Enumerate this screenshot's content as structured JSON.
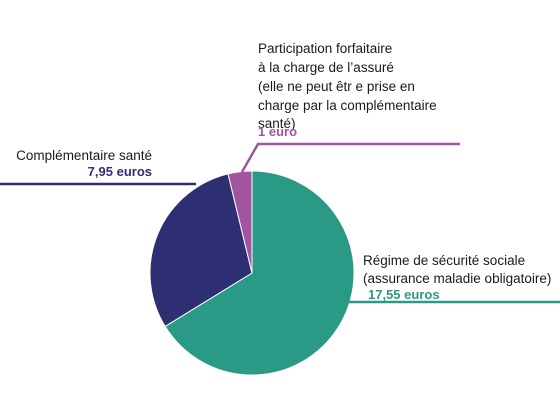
{
  "chart_data": {
    "type": "pie",
    "slices": [
      {
        "label_lines": [
          "Régime de sécurité sociale",
          "(assurance maladie obligatoire)"
        ],
        "value_label": "17,55 euros",
        "value": 17.55,
        "color": "#2a9a86"
      },
      {
        "label_lines": [
          "Complémentaire santé"
        ],
        "value_label": "7,95 euros",
        "value": 7.95,
        "color": "#2e2e72"
      },
      {
        "label_lines": [
          "Participation forfaitaire",
          "à la charge de l’assuré",
          "(elle ne peut êtr e prise en",
          "charge par la complémentaire",
          "santé)"
        ],
        "value_label": "1 euro",
        "value": 1,
        "color": "#a2559f"
      }
    ]
  }
}
